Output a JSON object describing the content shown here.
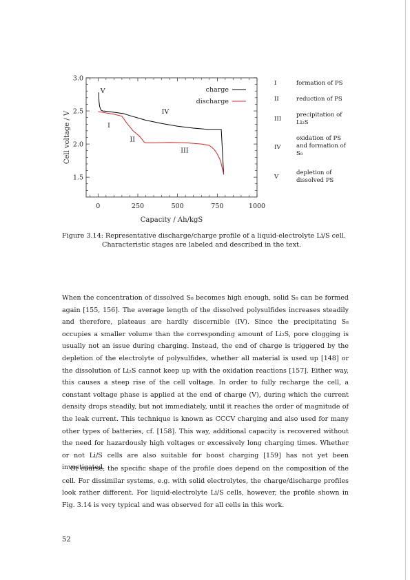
{
  "figure": {
    "legend_text": {
      "stages": [
        {
          "num": "I",
          "text": "formation of PS"
        },
        {
          "num": "II",
          "text": "reduction of PS"
        },
        {
          "num": "III",
          "text": "precipitation of Li₂S"
        },
        {
          "num": "IV",
          "text": "oxidation of PS and formation of S₈"
        },
        {
          "num": "V",
          "text": "depletion of dissolved PS"
        }
      ]
    },
    "caption_label": "Figure 3.14:",
    "caption_line1": "Representative discharge/charge profile of a liquid-electrolyte Li/S cell.",
    "caption_line2": "Characteristic stages are labeled and described in the text."
  },
  "chart_data": {
    "type": "line",
    "xlabel": "Capacity / Ah/kgS",
    "ylabel": "Cell voltage / V",
    "xlim": [
      -75,
      1000
    ],
    "ylim": [
      1.2,
      3.0
    ],
    "x_ticks": [
      0,
      250,
      500,
      750,
      1000
    ],
    "y_ticks": [
      1.5,
      2.0,
      2.5,
      3.0
    ],
    "x_tick_labels": [
      "0",
      "250",
      "500",
      "750",
      "1000"
    ],
    "y_tick_labels": [
      "1.5",
      "2.0",
      "2.5",
      "3.0"
    ],
    "legend_position": "top-right",
    "series": [
      {
        "name": "charge",
        "color": "#000000",
        "x": [
          790,
          775,
          700,
          600,
          500,
          400,
          300,
          200,
          160,
          100,
          50,
          30,
          20,
          15,
          10,
          6,
          4
        ],
        "y": [
          1.54,
          2.22,
          2.22,
          2.24,
          2.27,
          2.31,
          2.36,
          2.43,
          2.46,
          2.48,
          2.495,
          2.5,
          2.51,
          2.53,
          2.57,
          2.64,
          2.78
        ]
      },
      {
        "name": "discharge",
        "color": "#e0202a",
        "x": [
          0,
          100,
          150,
          180,
          220,
          260,
          290,
          300,
          350,
          450,
          550,
          650,
          700,
          730,
          750,
          770,
          780,
          790
        ],
        "y": [
          2.49,
          2.45,
          2.42,
          2.32,
          2.2,
          2.12,
          2.03,
          2.02,
          2.02,
          2.025,
          2.02,
          2.0,
          1.98,
          1.92,
          1.85,
          1.75,
          1.65,
          1.55
        ]
      }
    ],
    "annotations": [
      {
        "text": "V",
        "x": 15,
        "y": 2.77
      },
      {
        "text": "I",
        "x": 60,
        "y": 2.25
      },
      {
        "text": "II",
        "x": 200,
        "y": 2.04
      },
      {
        "text": "III",
        "x": 520,
        "y": 1.87
      },
      {
        "text": "IV",
        "x": 400,
        "y": 2.46
      }
    ]
  },
  "body": {
    "paragraph1": "When the concentration of dissolved S₈ becomes high enough, solid S₈ can be formed again [155, 156]. The average length of the dissolved polysulfides increases steadily and therefore, plateaus are hardly discernible (IV). Since the precipitating S₈ occupies a smaller volume than the corresponding amount of Li₂S, pore clogging is usually not an issue during charging. Instead, the end of charge is triggered by the depletion of the electrolyte of polysulfides, whether all material is used up [148] or the dissolution of Li₂S cannot keep up with the oxidation reactions [157]. Either way, this causes a steep rise of the cell voltage. In order to fully recharge the cell, a constant voltage phase is applied at the end of charge (V), during which the current density drops steadily, but not immediately, until it reaches the order of magnitude of the leak current. This technique is known as CCCV charging and also used for many other types of batteries, cf. [158]. This way, additional capacity is recovered without the need for hazardously high voltages or excessively long charging times. Whether or not Li/S cells are also suitable for boost charging [159] has not yet been investigated.",
    "paragraph2": "Of course, the specific shape of the profile does depend on the composition of the cell. For dissimilar systems, e.g. with solid electrolytes, the charge/discharge profiles look rather different. For liquid-electrolyte Li/S cells, however, the profile shown in Fig. 3.14 is very typical and was observed for all cells in this work."
  },
  "page_number": "52"
}
